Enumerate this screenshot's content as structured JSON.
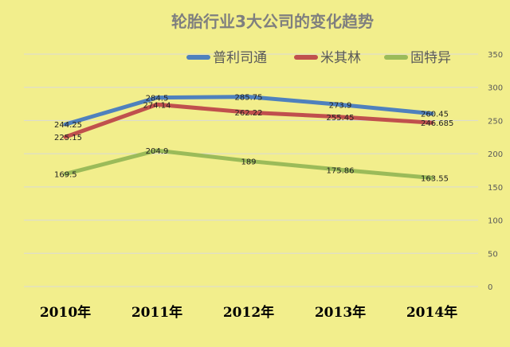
{
  "chart_data": {
    "type": "line",
    "title": "轮胎行业3大公司的变化趋势",
    "categories": [
      "2010年",
      "2011年",
      "2012年",
      "2013年",
      "2014年"
    ],
    "series": [
      {
        "name": "普利司通",
        "color": "#4f81bd",
        "values": [
          244.25,
          284.5,
          285.75,
          273.9,
          260.45
        ],
        "labels": [
          "244.25",
          "284.5",
          "285.75",
          "273.9",
          "260.45"
        ]
      },
      {
        "name": "米其林",
        "color": "#c0504d",
        "values": [
          225.15,
          274.14,
          262.22,
          255.45,
          246.685
        ],
        "labels": [
          "225.15",
          "274.14",
          "262.22",
          "255.45",
          "246.685"
        ]
      },
      {
        "name": "固特异",
        "color": "#9bbb59",
        "values": [
          169.5,
          204.9,
          189,
          175.86,
          163.55
        ],
        "labels": [
          "169.5",
          "204.9",
          "189",
          "175.86",
          "163.55"
        ]
      }
    ],
    "yticks": [
      "0",
      "50",
      "100",
      "150",
      "200",
      "250",
      "300",
      "350"
    ],
    "ylim": [
      0,
      350
    ],
    "grid": true,
    "legend": "top-right"
  }
}
